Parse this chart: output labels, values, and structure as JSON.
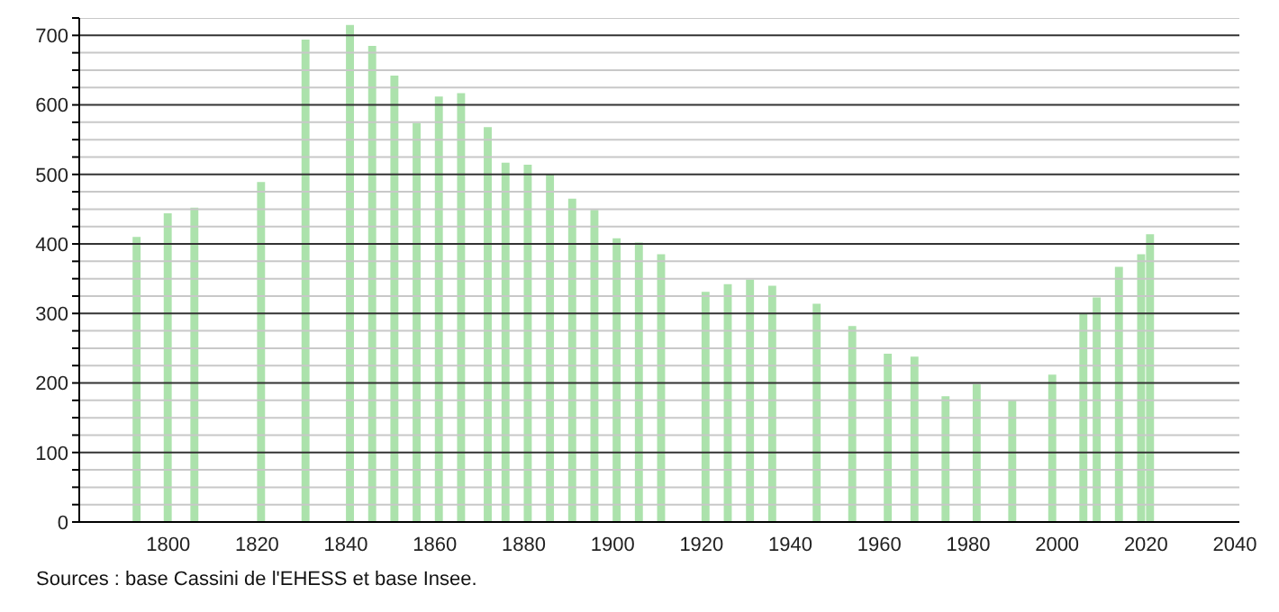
{
  "chart_data": {
    "type": "bar",
    "x": [
      1793,
      1800,
      1806,
      1821,
      1831,
      1841,
      1846,
      1851,
      1856,
      1861,
      1866,
      1872,
      1876,
      1881,
      1886,
      1891,
      1896,
      1901,
      1906,
      1911,
      1921,
      1926,
      1931,
      1936,
      1946,
      1954,
      1962,
      1968,
      1975,
      1982,
      1990,
      1999,
      2006,
      2009,
      2014,
      2019,
      2021
    ],
    "values": [
      410,
      444,
      452,
      489,
      694,
      715,
      685,
      642,
      574,
      612,
      617,
      568,
      517,
      514,
      501,
      465,
      449,
      408,
      402,
      385,
      331,
      342,
      349,
      340,
      314,
      282,
      242,
      238,
      181,
      198,
      175,
      212,
      300,
      323,
      367,
      385,
      414
    ],
    "color": "#ace2ac",
    "xlim": [
      1780,
      2041
    ],
    "xticks": [
      1800,
      1820,
      1840,
      1860,
      1880,
      1900,
      1920,
      1940,
      1960,
      1980,
      2000,
      2020,
      2040
    ],
    "ylim": [
      0,
      725
    ],
    "yticks": [
      0,
      {
        "value": 25,
        "label": null
      },
      {
        "value": 50,
        "label": null
      },
      {
        "value": 75,
        "label": null
      },
      100,
      {
        "value": 125,
        "label": null
      },
      {
        "value": 150,
        "label": null
      },
      {
        "value": 175,
        "label": null
      },
      200,
      {
        "value": 225,
        "label": null
      },
      {
        "value": 250,
        "label": null
      },
      {
        "value": 275,
        "label": null
      },
      300,
      {
        "value": 325,
        "label": null
      },
      {
        "value": 350,
        "label": null
      },
      {
        "value": 375,
        "label": null
      },
      400,
      {
        "value": 425,
        "label": null
      },
      {
        "value": 450,
        "label": null
      },
      {
        "value": 475,
        "label": null
      },
      500,
      {
        "value": 525,
        "label": null
      },
      {
        "value": 550,
        "label": null
      },
      {
        "value": 575,
        "label": null
      },
      600,
      {
        "value": 625,
        "label": null
      },
      {
        "value": 650,
        "label": null
      },
      {
        "value": 675,
        "label": null
      },
      700,
      {
        "value": 725,
        "label": null
      }
    ],
    "grid": "y",
    "annotations": [
      "Sources : base Cassini de l'EHESS et base Insee."
    ]
  }
}
